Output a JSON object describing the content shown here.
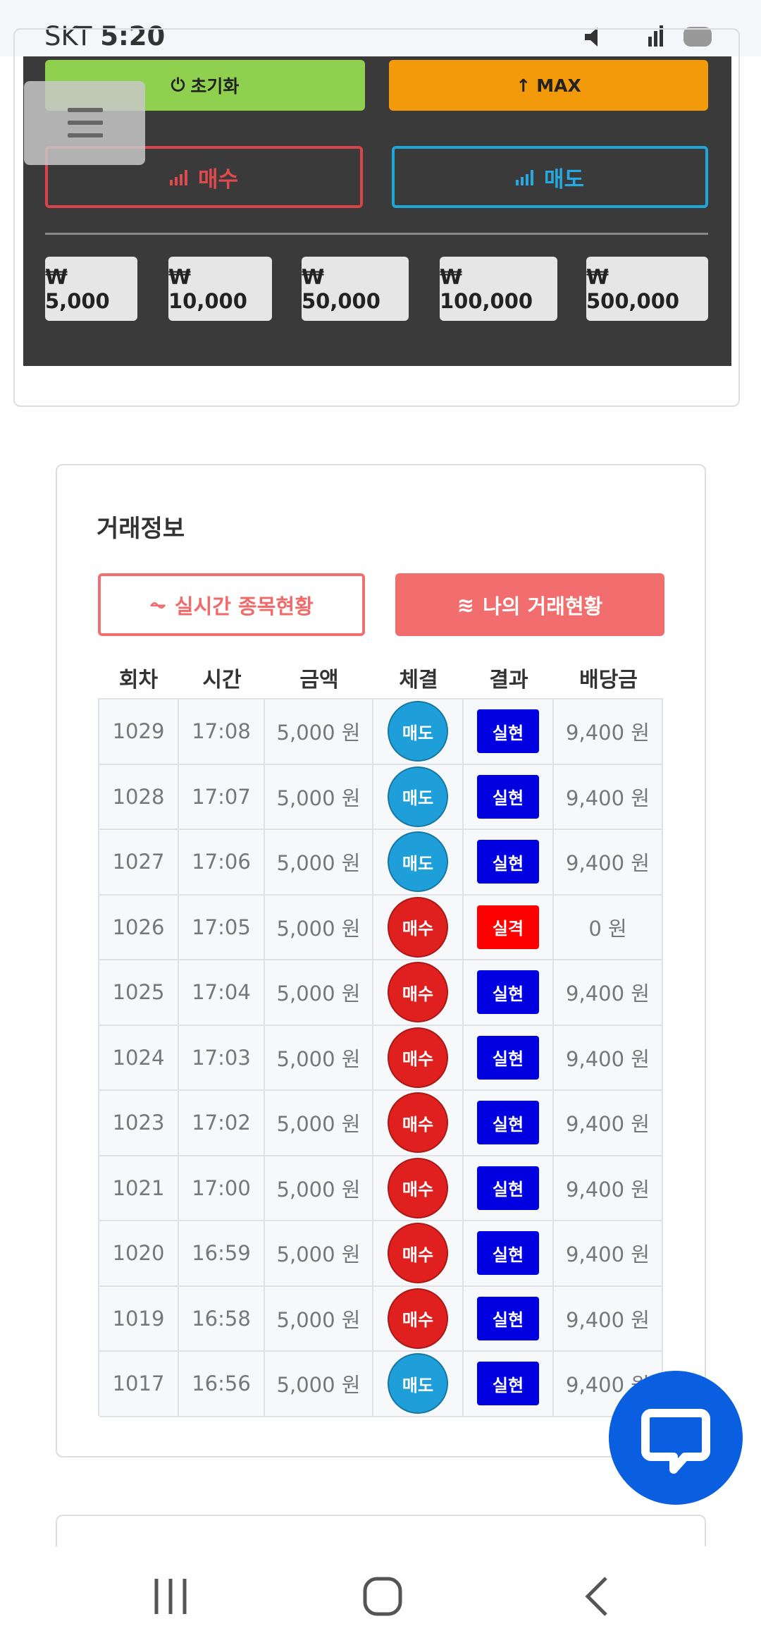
{
  "status": {
    "carrier": "SKT",
    "time": "5:20"
  },
  "panel": {
    "reset": "초기화",
    "max": "MAX",
    "buy": "매수",
    "sell": "매도",
    "amounts": [
      "₩ 5,000",
      "₩ 10,000",
      "₩ 50,000",
      "₩ 100,000",
      "₩ 500,000"
    ]
  },
  "trade": {
    "title": "거래정보",
    "tabs": [
      "실시간 종목현황",
      "나의 거래현황"
    ],
    "columns": [
      "회차",
      "시간",
      "금액",
      "체결",
      "결과",
      "배당금"
    ],
    "rows": [
      {
        "round": "1029",
        "time": "17:08",
        "amount": "5,000 원",
        "side": "매도",
        "side_color": "#1f9fd9",
        "result": "실현",
        "result_color": "#0000e0",
        "payout": "9,400 원"
      },
      {
        "round": "1028",
        "time": "17:07",
        "amount": "5,000 원",
        "side": "매도",
        "side_color": "#1f9fd9",
        "result": "실현",
        "result_color": "#0000e0",
        "payout": "9,400 원"
      },
      {
        "round": "1027",
        "time": "17:06",
        "amount": "5,000 원",
        "side": "매도",
        "side_color": "#1f9fd9",
        "result": "실현",
        "result_color": "#0000e0",
        "payout": "9,400 원"
      },
      {
        "round": "1026",
        "time": "17:05",
        "amount": "5,000 원",
        "side": "매수",
        "side_color": "#e0201f",
        "result": "실격",
        "result_color": "#ff0000",
        "payout": "0 원"
      },
      {
        "round": "1025",
        "time": "17:04",
        "amount": "5,000 원",
        "side": "매수",
        "side_color": "#e0201f",
        "result": "실현",
        "result_color": "#0000e0",
        "payout": "9,400 원"
      },
      {
        "round": "1024",
        "time": "17:03",
        "amount": "5,000 원",
        "side": "매수",
        "side_color": "#e0201f",
        "result": "실현",
        "result_color": "#0000e0",
        "payout": "9,400 원"
      },
      {
        "round": "1023",
        "time": "17:02",
        "amount": "5,000 원",
        "side": "매수",
        "side_color": "#e0201f",
        "result": "실현",
        "result_color": "#0000e0",
        "payout": "9,400 원"
      },
      {
        "round": "1021",
        "time": "17:00",
        "amount": "5,000 원",
        "side": "매수",
        "side_color": "#e0201f",
        "result": "실현",
        "result_color": "#0000e0",
        "payout": "9,400 원"
      },
      {
        "round": "1020",
        "time": "16:59",
        "amount": "5,000 원",
        "side": "매수",
        "side_color": "#e0201f",
        "result": "실현",
        "result_color": "#0000e0",
        "payout": "9,400 원"
      },
      {
        "round": "1019",
        "time": "16:58",
        "amount": "5,000 원",
        "side": "매수",
        "side_color": "#e0201f",
        "result": "실현",
        "result_color": "#0000e0",
        "payout": "9,400 원"
      },
      {
        "round": "1017",
        "time": "16:56",
        "amount": "5,000 원",
        "side": "매도",
        "side_color": "#1f9fd9",
        "result": "실현",
        "result_color": "#0000e0",
        "payout": "9,400 원"
      }
    ]
  }
}
